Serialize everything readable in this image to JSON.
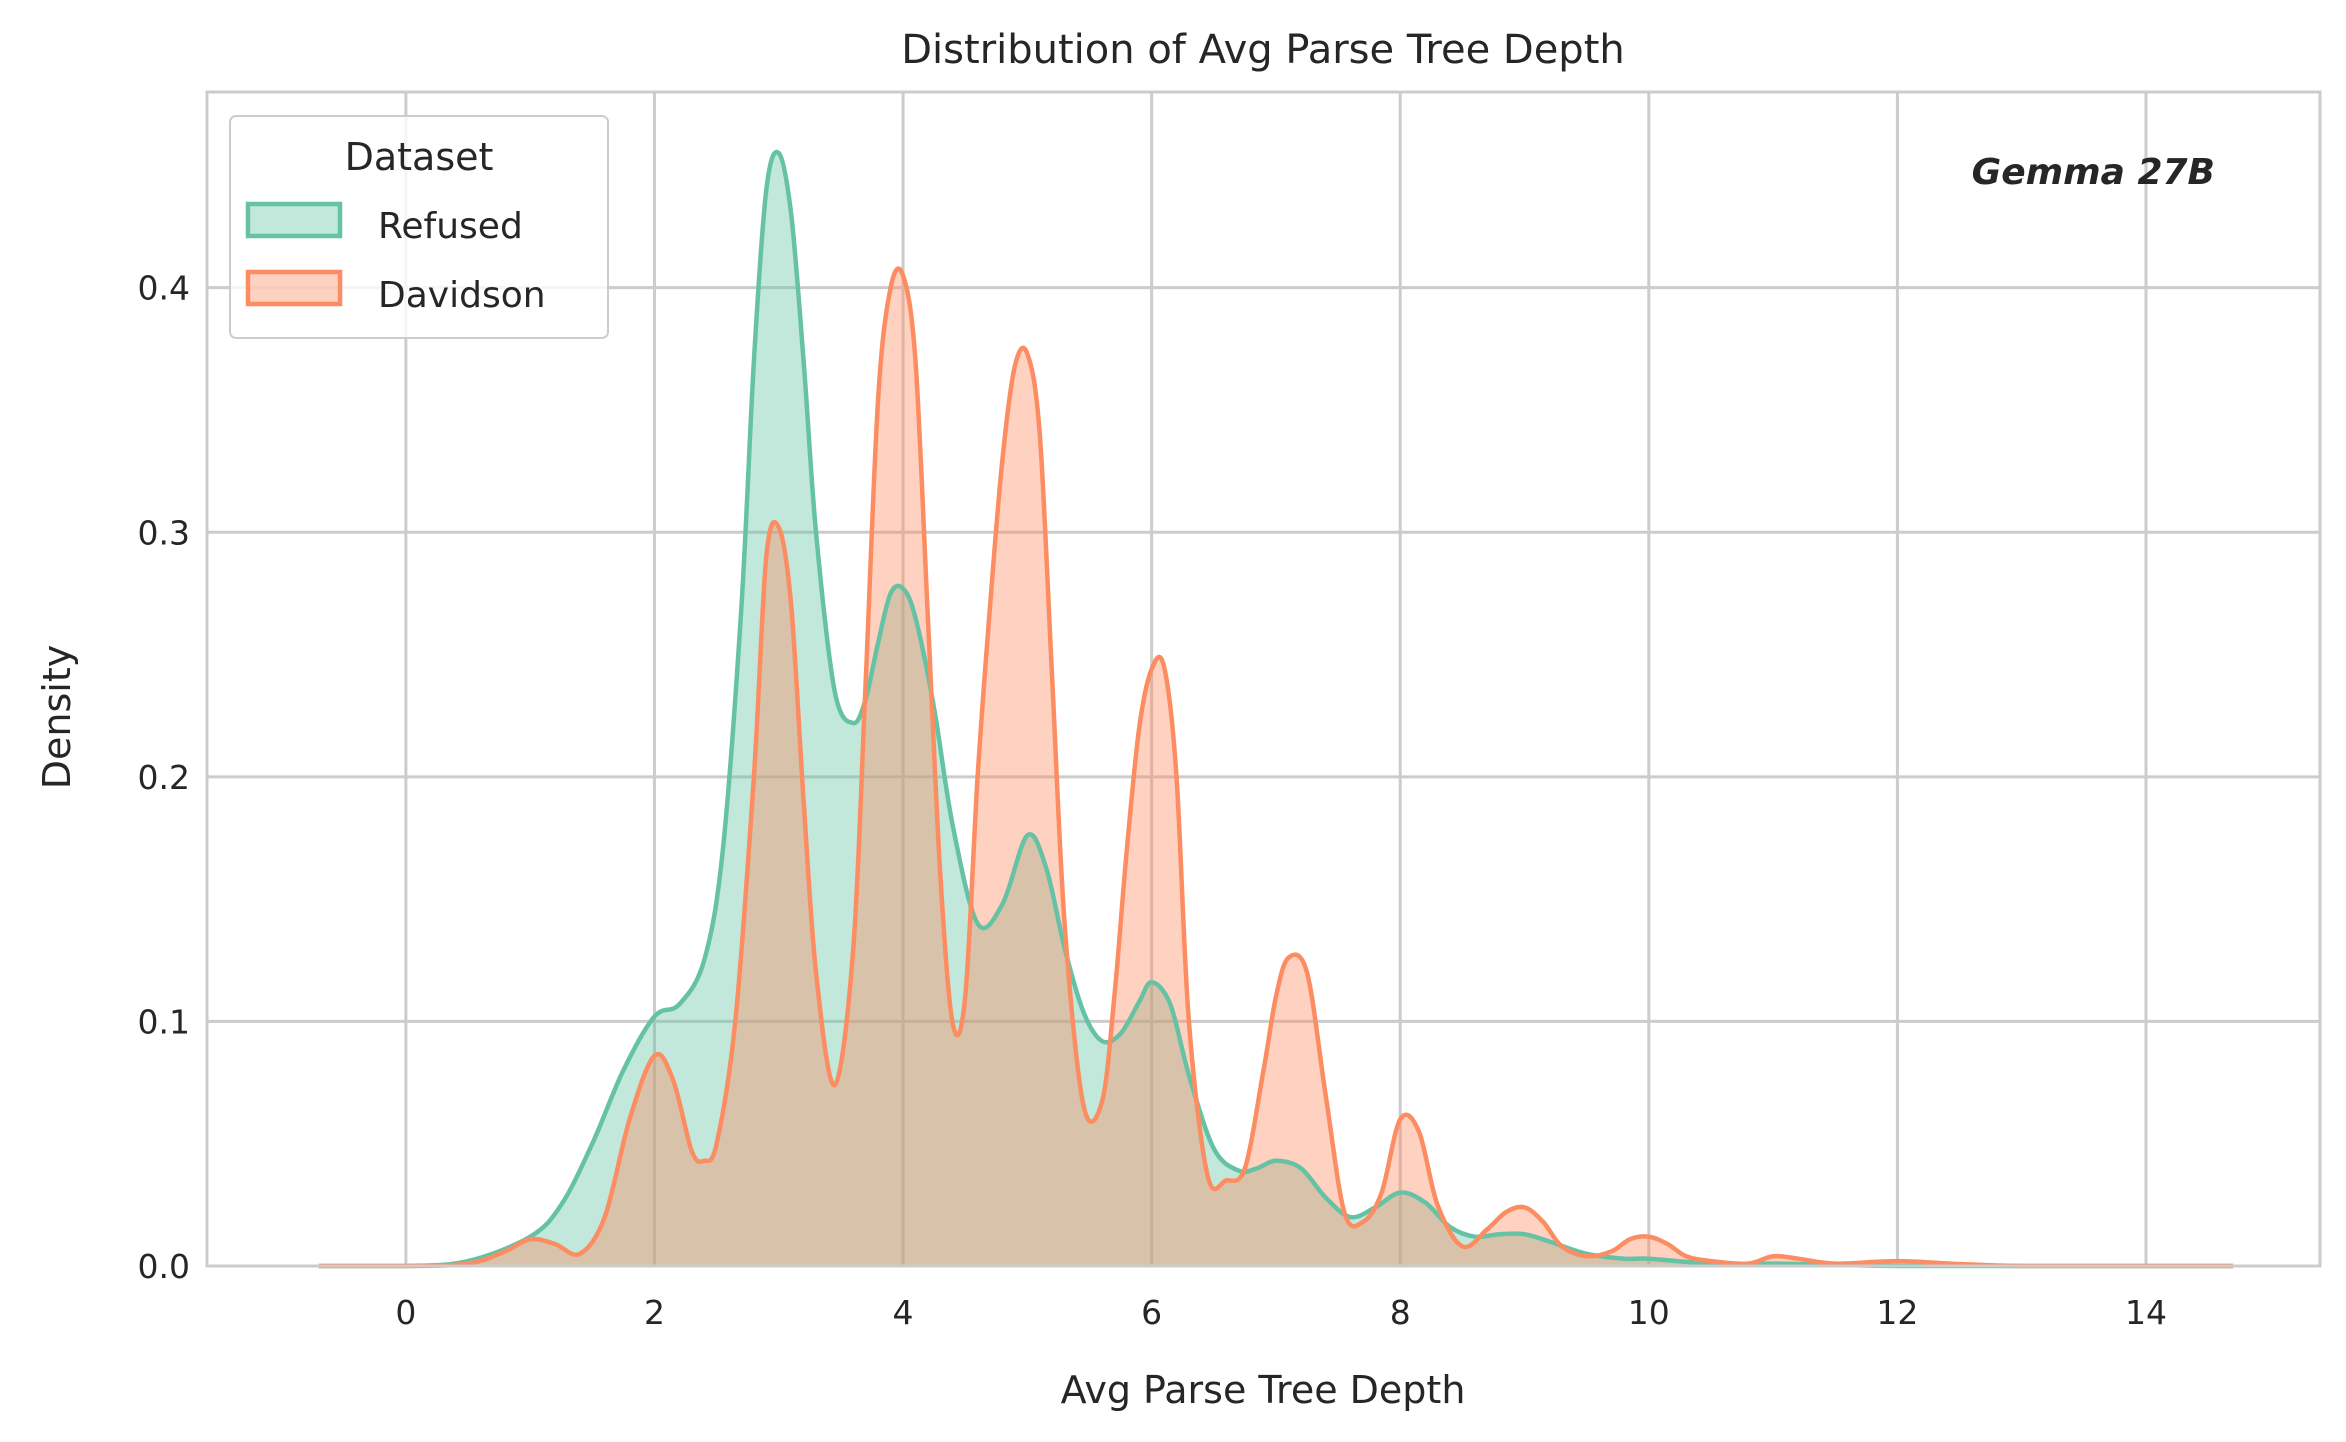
{
  "chart_data": {
    "type": "area",
    "title": "Distribution of Avg Parse Tree Depth",
    "xlabel": "Avg Parse Tree Depth",
    "ylabel": "Density",
    "xlim": [
      -1.6,
      15.4
    ],
    "ylim": [
      0,
      0.48
    ],
    "xticks": [
      "0",
      "2",
      "4",
      "6",
      "8",
      "10",
      "12",
      "14"
    ],
    "xtick_values": [
      0,
      2,
      4,
      6,
      8,
      10,
      12,
      14
    ],
    "yticks": [
      "0.0",
      "0.1",
      "0.2",
      "0.3",
      "0.4"
    ],
    "ytick_values": [
      0,
      0.1,
      0.2,
      0.3,
      0.4
    ],
    "grid": true,
    "legend": {
      "title": "Dataset",
      "placement": "top-left"
    },
    "annotation": "Gemma 27B",
    "series": [
      {
        "name": "Refused",
        "color": "#66c2a5",
        "x": [
          -0.7,
          0,
          0.5,
          1,
          1.25,
          1.5,
          1.75,
          2,
          2.2,
          2.4,
          2.55,
          2.7,
          2.8,
          2.9,
          3,
          3.1,
          3.2,
          3.3,
          3.45,
          3.6,
          3.7,
          3.8,
          3.9,
          4,
          4.1,
          4.25,
          4.4,
          4.6,
          4.8,
          5,
          5.15,
          5.3,
          5.45,
          5.6,
          5.75,
          5.9,
          6,
          6.15,
          6.3,
          6.5,
          6.7,
          6.85,
          7,
          7.2,
          7.4,
          7.6,
          7.8,
          8,
          8.2,
          8.4,
          8.6,
          8.8,
          9,
          9.2,
          9.5,
          9.8,
          10,
          10.5,
          11,
          11.5,
          12,
          13,
          14,
          14.7
        ],
        "values": [
          0,
          0,
          0.002,
          0.012,
          0.025,
          0.05,
          0.08,
          0.102,
          0.107,
          0.125,
          0.17,
          0.27,
          0.37,
          0.44,
          0.455,
          0.43,
          0.37,
          0.3,
          0.235,
          0.222,
          0.232,
          0.255,
          0.275,
          0.277,
          0.265,
          0.228,
          0.18,
          0.14,
          0.148,
          0.176,
          0.163,
          0.13,
          0.104,
          0.092,
          0.095,
          0.108,
          0.116,
          0.107,
          0.078,
          0.048,
          0.039,
          0.04,
          0.043,
          0.04,
          0.028,
          0.02,
          0.024,
          0.03,
          0.026,
          0.016,
          0.012,
          0.013,
          0.013,
          0.01,
          0.005,
          0.003,
          0.003,
          0.001,
          0.001,
          0.0005,
          0,
          0,
          0,
          0
        ]
      },
      {
        "name": "Davidson",
        "color": "#fc8d62",
        "x": [
          -0.7,
          0,
          0.5,
          0.8,
          1,
          1.2,
          1.4,
          1.6,
          1.8,
          2,
          2.15,
          2.3,
          2.4,
          2.5,
          2.65,
          2.8,
          2.9,
          3,
          3.1,
          3.2,
          3.3,
          3.45,
          3.6,
          3.7,
          3.8,
          3.9,
          4,
          4.1,
          4.2,
          4.3,
          4.4,
          4.5,
          4.6,
          4.7,
          4.8,
          4.9,
          5,
          5.1,
          5.2,
          5.3,
          5.45,
          5.6,
          5.7,
          5.8,
          5.9,
          6,
          6.1,
          6.2,
          6.3,
          6.45,
          6.6,
          6.75,
          6.9,
          7,
          7.1,
          7.25,
          7.4,
          7.55,
          7.7,
          7.85,
          8,
          8.15,
          8.3,
          8.5,
          8.7,
          8.85,
          9,
          9.15,
          9.3,
          9.5,
          9.7,
          9.85,
          10,
          10.15,
          10.3,
          10.5,
          10.8,
          11,
          11.2,
          11.5,
          12,
          12.5,
          13,
          14,
          14.7
        ],
        "values": [
          0,
          0,
          0.001,
          0.006,
          0.011,
          0.009,
          0.005,
          0.02,
          0.06,
          0.086,
          0.076,
          0.047,
          0.043,
          0.05,
          0.1,
          0.2,
          0.29,
          0.302,
          0.27,
          0.19,
          0.12,
          0.074,
          0.13,
          0.24,
          0.355,
          0.4,
          0.405,
          0.37,
          0.265,
          0.16,
          0.099,
          0.11,
          0.2,
          0.27,
          0.33,
          0.368,
          0.373,
          0.34,
          0.24,
          0.14,
          0.066,
          0.067,
          0.11,
          0.17,
          0.22,
          0.244,
          0.245,
          0.2,
          0.1,
          0.037,
          0.035,
          0.04,
          0.08,
          0.11,
          0.126,
          0.12,
          0.07,
          0.022,
          0.018,
          0.03,
          0.06,
          0.055,
          0.025,
          0.008,
          0.015,
          0.022,
          0.024,
          0.018,
          0.008,
          0.004,
          0.006,
          0.011,
          0.012,
          0.009,
          0.004,
          0.002,
          0.001,
          0.004,
          0.003,
          0.001,
          0.002,
          0.0008,
          0,
          0,
          0
        ]
      }
    ]
  }
}
